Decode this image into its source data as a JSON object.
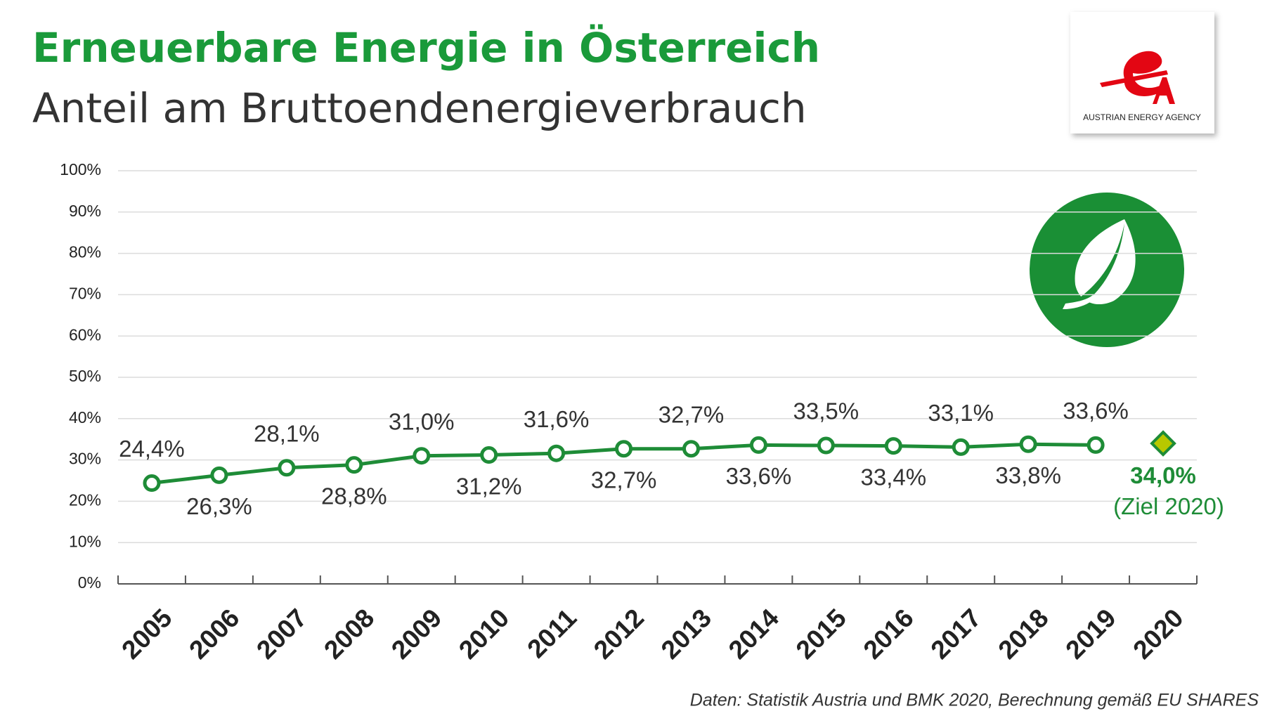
{
  "chart_data": {
    "type": "line",
    "title": "Erneuerbare Energie in Österreich",
    "subtitle": "Anteil am Bruttoendenergieverbrauch",
    "source": "Daten: Statistik Austria und BMK 2020, Berechnung gemäß EU SHARES",
    "logo_text": "AUSTRIAN ENERGY AGENCY",
    "categories": [
      "2005",
      "2006",
      "2007",
      "2008",
      "2009",
      "2010",
      "2011",
      "2012",
      "2013",
      "2014",
      "2015",
      "2016",
      "2017",
      "2018",
      "2019",
      "2020"
    ],
    "series": [
      {
        "color": "#1e8c37",
        "values": [
          24.4,
          26.3,
          28.1,
          28.8,
          31.0,
          31.2,
          31.6,
          32.7,
          32.7,
          33.6,
          33.5,
          33.4,
          33.1,
          33.8,
          33.6,
          null
        ],
        "value_labels": [
          "24,4%",
          "26,3%",
          "28,1%",
          "28,8%",
          "31,0%",
          "31,2%",
          "31,6%",
          "32,7%",
          "32,7%",
          "33,6%",
          "33,5%",
          "33,4%",
          "33,1%",
          "33,8%",
          "33,6%",
          null
        ]
      },
      {
        "name": "(Ziel 2020)",
        "color": "#b8c800",
        "values": [
          null,
          null,
          null,
          null,
          null,
          null,
          null,
          null,
          null,
          null,
          null,
          null,
          null,
          null,
          null,
          34.0
        ],
        "value_labels": [
          null,
          null,
          null,
          null,
          null,
          null,
          null,
          null,
          null,
          null,
          null,
          null,
          null,
          null,
          null,
          "34,0%"
        ]
      }
    ],
    "ylim": [
      0,
      100
    ],
    "yticks": [
      {
        "value": 0,
        "label": "0%"
      },
      {
        "value": 10,
        "label": "10%"
      },
      {
        "value": 20,
        "label": "20%"
      },
      {
        "value": 30,
        "label": "30%"
      },
      {
        "value": 40,
        "label": "40%"
      },
      {
        "value": 50,
        "label": "50%"
      },
      {
        "value": 60,
        "label": "60%"
      },
      {
        "value": 70,
        "label": "70%"
      },
      {
        "value": 80,
        "label": "80%"
      },
      {
        "value": 90,
        "label": "90%"
      },
      {
        "value": 100,
        "label": "100%"
      }
    ],
    "grid": true
  }
}
